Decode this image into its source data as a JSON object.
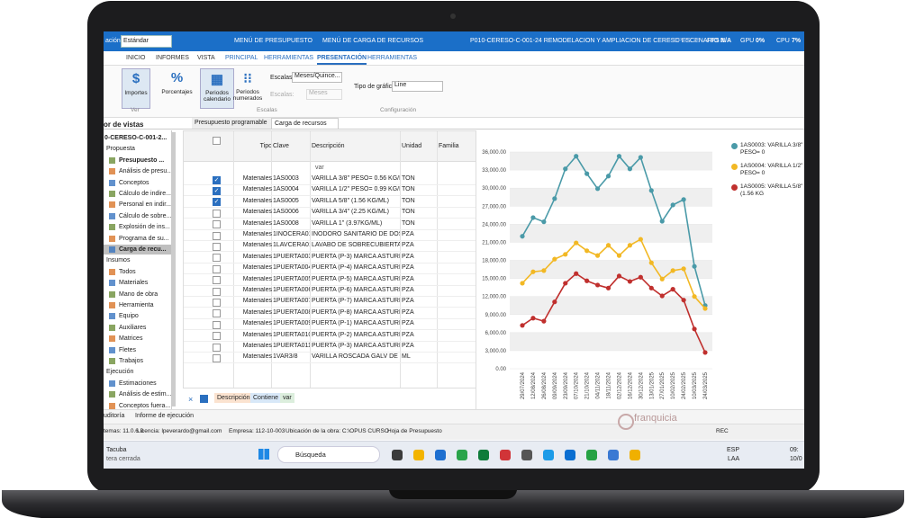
{
  "title_bar": {
    "view_label": "ación:",
    "view_value": "Estándar",
    "menu_budget": "MENÚ DE PRESUPUESTO",
    "menu_resources": "MENÚ DE CARGA DE RECURSOS",
    "project": "P010-CERESO-C-001-24 REMODELACION Y AMPLIACION DE CERESO ESCENARIO 2",
    "app": "- OPUS 25",
    "fps_label": "FPS",
    "fps": "N/A",
    "gpu_label": "GPU",
    "gpu": "0%",
    "cpu_label": "CPU",
    "cpu": "7%"
  },
  "ribbon_tabs": [
    {
      "label": "INICIO",
      "active": false
    },
    {
      "label": "INFORMES",
      "active": false
    },
    {
      "label": "VISTA",
      "active": false
    },
    {
      "label": "PRINCIPAL",
      "active": false
    },
    {
      "label": "HERRAMIENTAS",
      "active": false
    },
    {
      "label": "PRESENTACIÓN",
      "active": true
    },
    {
      "label": "HERRAMIENTAS",
      "active": false
    }
  ],
  "ribbon": {
    "buttons": [
      "Importes",
      "Porcentajes",
      "Periodos calendario",
      "Periodos numerados"
    ],
    "scale1_label": "Escalas:",
    "scale1_value": "Meses/Quince...",
    "scale2_label": "Escalas:",
    "scale2_value": "Meses",
    "chart_type_label": "Tipo de gráfica:",
    "chart_type_value": "Line",
    "groups": [
      "Ver",
      "Escalas",
      "Configuración"
    ]
  },
  "panel_title": "or de vistas",
  "doc_tabs": [
    "Presupuesto programable",
    "Carga de recursos"
  ],
  "sidebar": [
    {
      "label": "0-CERESO-C-001-2...",
      "kind": "root"
    },
    {
      "label": "Propuesta",
      "kind": "section"
    },
    {
      "label": "Presupuesto ...",
      "kind": "bold"
    },
    {
      "label": "Análisis de presu...",
      "kind": "item"
    },
    {
      "label": "Conceptos",
      "kind": "item"
    },
    {
      "label": "Cálculo de indire...",
      "kind": "item"
    },
    {
      "label": "Personal en indir...",
      "kind": "item"
    },
    {
      "label": "Cálculo de sobre...",
      "kind": "item"
    },
    {
      "label": "Explosión de ins...",
      "kind": "item"
    },
    {
      "label": "Programa de su...",
      "kind": "item"
    },
    {
      "label": "Carga de recu...",
      "kind": "selected"
    },
    {
      "label": "Insumos",
      "kind": "section"
    },
    {
      "label": "Todos",
      "kind": "item"
    },
    {
      "label": "Materiales",
      "kind": "item"
    },
    {
      "label": "Mano de obra",
      "kind": "item"
    },
    {
      "label": "Herramienta",
      "kind": "item"
    },
    {
      "label": "Equipo",
      "kind": "item"
    },
    {
      "label": "Auxiliares",
      "kind": "item"
    },
    {
      "label": "Matrices",
      "kind": "item"
    },
    {
      "label": "Fletes",
      "kind": "item"
    },
    {
      "label": "Trabajos",
      "kind": "item"
    },
    {
      "label": "Ejecución",
      "kind": "section"
    },
    {
      "label": "Estimaciones",
      "kind": "item"
    },
    {
      "label": "Análisis de estim...",
      "kind": "item"
    },
    {
      "label": "Conceptos fuera...",
      "kind": "item"
    }
  ],
  "table": {
    "columns": [
      "Tipo",
      "Clave",
      "Descripción",
      "Unidad",
      "Familia"
    ],
    "filter": "var",
    "rows": [
      {
        "checked": true,
        "tipo": "Materiales",
        "clave": "1AS0003",
        "descripcion": "VARILLA 3/8\" PESO= 0.56 KG/ML",
        "unidad": "TON"
      },
      {
        "checked": true,
        "tipo": "Materiales",
        "clave": "1AS0004",
        "descripcion": "VARILLA 1/2\" PESO= 0.99 KG/ML",
        "unidad": "TON"
      },
      {
        "checked": true,
        "tipo": "Materiales",
        "clave": "1AS0005",
        "descripcion": "VARILLA 5/8\" (1.56 KG/ML)",
        "unidad": "TON"
      },
      {
        "checked": false,
        "tipo": "Materiales",
        "clave": "1AS0006",
        "descripcion": "VARILLA 3/4\" (2.25 KG/ML)",
        "unidad": "TON"
      },
      {
        "checked": false,
        "tipo": "Materiales",
        "clave": "1AS0008",
        "descripcion": "VARILLA 1\" (3.97KG/ML)",
        "unidad": "TON"
      },
      {
        "checked": false,
        "tipo": "Materiales",
        "clave": "1INOCERA01",
        "descripcion": "INODORO SANITARIO DE DOS P...",
        "unidad": "PZA"
      },
      {
        "checked": false,
        "tipo": "Materiales",
        "clave": "1LAVCERA01",
        "descripcion": "LAVABO DE SOBRECUBIERTARE...",
        "unidad": "PZA"
      },
      {
        "checked": false,
        "tipo": "Materiales",
        "clave": "1PUERTA003",
        "descripcion": "PUERTA (P-3) MARCA ASTURME...",
        "unidad": "PZA"
      },
      {
        "checked": false,
        "tipo": "Materiales",
        "clave": "1PUERTA004",
        "descripcion": "PUERTA (P-4) MARCA ASTURME...",
        "unidad": "PZA"
      },
      {
        "checked": false,
        "tipo": "Materiales",
        "clave": "1PUERTA005",
        "descripcion": "PUERTA (P-5) MARCA ASTURMEX PARA V...",
        "unidad": "PZA"
      },
      {
        "checked": false,
        "tipo": "Materiales",
        "clave": "1PUERTA006",
        "descripcion": "PUERTA (P-6) MARCA ASTURMEX PARA V...",
        "unidad": "PZA"
      },
      {
        "checked": false,
        "tipo": "Materiales",
        "clave": "1PUERTA007",
        "descripcion": "PUERTA (P-7) MARCA ASTURME...",
        "unidad": "PZA"
      },
      {
        "checked": false,
        "tipo": "Materiales",
        "clave": "1PUERTA008",
        "descripcion": "PUERTA (P-8) MARCA ASTURME...",
        "unidad": "PZA"
      },
      {
        "checked": false,
        "tipo": "Materiales",
        "clave": "1PUERTA009",
        "descripcion": "PUERTA (P-1) MARCA ASTURME...",
        "unidad": "PZA"
      },
      {
        "checked": false,
        "tipo": "Materiales",
        "clave": "1PUERTA010",
        "descripcion": "PUERTA (P-2) MARCA ASTURME...",
        "unidad": "PZA"
      },
      {
        "checked": false,
        "tipo": "Materiales",
        "clave": "1PUERTA011",
        "descripcion": "PUERTA (P-3) MARCA ASTURME...",
        "unidad": "PZA"
      },
      {
        "checked": false,
        "tipo": "Materiales",
        "clave": "1VAR3/8",
        "descripcion": "VARILLA ROSCADA GALV DE 3/8",
        "unidad": "ML"
      }
    ]
  },
  "filter_bar": [
    "Descripción",
    "Contiene",
    "var"
  ],
  "bottom_tabs": [
    "uditoría",
    "Informe de ejecución"
  ],
  "status_bar": {
    "version": "temas: 11.0.6.0",
    "license": "Licencia: lpeverardo@gmail.com",
    "company": "Empresa: 112-10-003",
    "location": "Ubicación de la obra: C:\\OPUS CURSO",
    "sheet": "Hoja de Presupuesto",
    "rec": "REC"
  },
  "logo": "franquicia",
  "taskbar": {
    "weather_title": "Tacuba",
    "weather_sub": "tera cerrada",
    "search": "Búsqueda",
    "lang": "ESP",
    "lang_sub": "LAA",
    "time": "09:",
    "date": "10/0"
  },
  "chart_data": {
    "type": "line",
    "legend": "right",
    "grid": true,
    "categories": [
      "29/07/2024",
      "12/08/2024",
      "26/08/2024",
      "09/09/2024",
      "23/09/2024",
      "07/10/2024",
      "21/10/2024",
      "04/11/2024",
      "18/11/2024",
      "02/12/2024",
      "16/12/2024",
      "30/12/2024",
      "13/01/2025",
      "27/01/2025",
      "10/02/2025",
      "24/02/2025",
      "10/03/2025",
      "24/03/2025"
    ],
    "ylim": [
      0,
      36000
    ],
    "yticks": [
      {
        "value": 0,
        "label": "0.00"
      },
      {
        "value": 3000,
        "label": "3,000.00"
      },
      {
        "value": 6000,
        "label": "6,000.00"
      },
      {
        "value": 9000,
        "label": "9,000.00"
      },
      {
        "value": 12000,
        "label": "12,000.00"
      },
      {
        "value": 15000,
        "label": "15,000.00"
      },
      {
        "value": 18000,
        "label": "18,000.00"
      },
      {
        "value": 21000,
        "label": "21,000.00"
      },
      {
        "value": 24000,
        "label": "24,000.00"
      },
      {
        "value": 27000,
        "label": "27,000.00"
      },
      {
        "value": 30000,
        "label": "30,000.00"
      },
      {
        "value": 33000,
        "label": "33,000.00"
      },
      {
        "value": 36000,
        "label": "36,000.00"
      }
    ],
    "series": [
      {
        "name": "1AS0003: VARILLA 3/8\" PESO= 0",
        "color": "#4a9aa8",
        "values": [
          22000,
          25100,
          24400,
          28250,
          33200,
          35300,
          32400,
          29900,
          32000,
          35300,
          33200,
          35100,
          29600,
          24500,
          27200,
          28100,
          17000,
          10500
        ]
      },
      {
        "name": "1AS0004: VARILLA 1/2\" PESO= 0",
        "color": "#f2b824",
        "values": [
          14200,
          16100,
          16300,
          18200,
          19000,
          20900,
          19600,
          18800,
          20500,
          18800,
          20500,
          21500,
          17600,
          14900,
          16300,
          16600,
          12000,
          10000
        ]
      },
      {
        "name": "1AS0005: VARILLA 5/8\" (1.56 KG",
        "color": "#c0302e",
        "values": [
          7200,
          8400,
          7900,
          11100,
          14200,
          15800,
          14600,
          13900,
          13400,
          15400,
          14500,
          15200,
          13400,
          12100,
          13200,
          11400,
          6600,
          2700
        ]
      }
    ]
  }
}
